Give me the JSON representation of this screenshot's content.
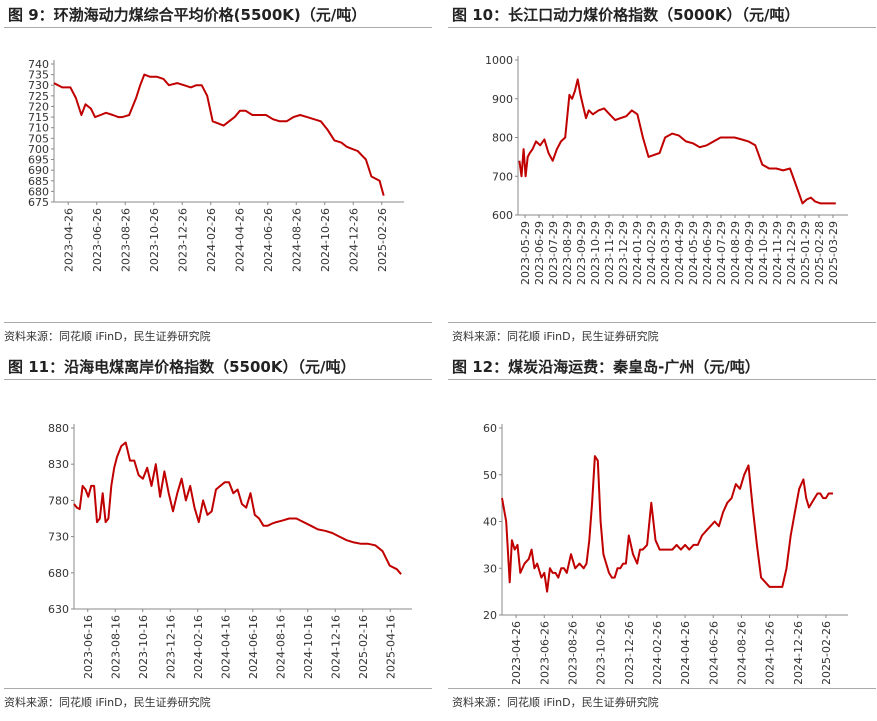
{
  "source_text": "资料来源：同花顺 iFinD，民生证券研究院",
  "line_color": "#c00000",
  "charts": [
    {
      "id": "fig9",
      "title": "图 9：环渤海动力煤综合平均价格(5500K)（元/吨）",
      "chart_data": {
        "type": "line",
        "title": "图 9：环渤海动力煤综合平均价格(5500K)（元/吨）",
        "ylim": [
          675,
          740
        ],
        "yticks": [
          675,
          680,
          685,
          690,
          695,
          700,
          705,
          710,
          715,
          720,
          725,
          730,
          735,
          740
        ],
        "xtick_labels": [
          "2023-04-26",
          "2023-06-26",
          "2023-08-26",
          "2023-10-26",
          "2023-12-26",
          "2024-02-26",
          "2024-04-26",
          "2024-06-26",
          "2024-08-26",
          "2024-10-26",
          "2024-12-26",
          "2025-02-26"
        ],
        "xlim": [
          0,
          25
        ],
        "x": [
          0,
          0.6,
          1.2,
          1.6,
          2.0,
          2.3,
          2.7,
          3.0,
          3.4,
          3.8,
          4.3,
          4.7,
          5.0,
          5.5,
          6.0,
          6.3,
          6.6,
          7.0,
          7.5,
          8.0,
          8.4,
          9.0,
          9.5,
          10.0,
          10.4,
          10.8,
          11.2,
          11.6,
          12.0,
          12.4,
          12.8,
          13.2,
          13.6,
          14.0,
          14.5,
          15.0,
          15.5,
          16.0,
          16.5,
          17.0,
          17.5,
          18.0,
          18.5,
          19.0,
          19.5,
          20.0,
          20.5,
          21.0,
          21.4,
          21.8,
          22.2,
          22.5,
          22.8,
          23.2,
          23.5,
          23.8,
          24.1
        ],
        "values": [
          731,
          729,
          729,
          724,
          716,
          721,
          719,
          715,
          716,
          717,
          716,
          715,
          715,
          716,
          724,
          730,
          735,
          734,
          734,
          733,
          730,
          731,
          730,
          729,
          730,
          730,
          725,
          713,
          712,
          711,
          713,
          715,
          718,
          718,
          716,
          716,
          716,
          714,
          713,
          713,
          715,
          716,
          715,
          714,
          713,
          709,
          704,
          703,
          701,
          700,
          699,
          697,
          695,
          687,
          686,
          685,
          678
        ]
      }
    },
    {
      "id": "fig10",
      "title": "图 10：长江口动力煤价格指数（5000K）（元/吨）",
      "chart_data": {
        "type": "line",
        "title": "图 10：长江口动力煤价格指数（5000K）（元/吨）",
        "ylim": [
          600,
          1000
        ],
        "yticks": [
          600,
          700,
          800,
          900,
          1000
        ],
        "xtick_labels": [
          "2023-05-29",
          "2023-06-29",
          "2023-07-29",
          "2023-08-29",
          "2023-09-29",
          "2023-10-29",
          "2023-11-29",
          "2023-12-29",
          "2024-01-29",
          "2024-02-29",
          "2024-03-29",
          "2024-04-29",
          "2024-05-29",
          "2024-06-29",
          "2024-07-29",
          "2024-08-29",
          "2024-09-29",
          "2024-10-29",
          "2024-11-29",
          "2024-12-29",
          "2025-01-29",
          "2025-02-28",
          "2025-03-29"
        ],
        "xlim": [
          -0.6,
          22.6
        ],
        "x": [
          -0.5,
          -0.35,
          -0.2,
          -0.05,
          0.1,
          0.25,
          0.45,
          0.7,
          1.0,
          1.3,
          1.6,
          1.9,
          2.2,
          2.5,
          2.8,
          3.1,
          3.3,
          3.5,
          3.7,
          3.9,
          4.1,
          4.3,
          4.5,
          4.8,
          5.2,
          5.6,
          6.0,
          6.4,
          6.8,
          7.2,
          7.6,
          8.0,
          8.4,
          8.8,
          9.2,
          9.6,
          10.0,
          10.5,
          11.0,
          11.5,
          12.0,
          12.5,
          13.0,
          13.5,
          14.0,
          14.5,
          15.0,
          15.5,
          16.0,
          16.5,
          17.0,
          17.5,
          18.0,
          18.5,
          19.0,
          19.3,
          19.6,
          19.9,
          20.2,
          20.5,
          20.8,
          21.2,
          21.6,
          22.0,
          22.3
        ],
        "values": [
          740,
          700,
          770,
          700,
          750,
          760,
          770,
          790,
          780,
          795,
          760,
          740,
          770,
          790,
          800,
          910,
          900,
          920,
          950,
          910,
          880,
          850,
          870,
          860,
          870,
          875,
          860,
          845,
          850,
          855,
          870,
          860,
          800,
          750,
          755,
          760,
          800,
          810,
          805,
          790,
          785,
          775,
          780,
          790,
          800,
          800,
          800,
          795,
          790,
          780,
          730,
          720,
          720,
          715,
          720,
          690,
          660,
          630,
          640,
          645,
          635,
          630,
          630,
          630,
          630
        ]
      }
    },
    {
      "id": "fig11",
      "title": "图 11：沿海电煤离岸价格指数（5500K）（元/吨）",
      "chart_data": {
        "type": "line",
        "title": "图 11：沿海电煤离岸价格指数（5500K）（元/吨）",
        "ylim": [
          630,
          880
        ],
        "yticks": [
          630,
          680,
          730,
          780,
          830,
          880
        ],
        "xtick_labels": [
          "2023-06-16",
          "2023-08-16",
          "2023-10-16",
          "2023-12-16",
          "2024-02-16",
          "2024-04-16",
          "2024-06-16",
          "2024-08-16",
          "2024-10-16",
          "2024-12-16",
          "2025-02-16",
          "2025-04-16"
        ],
        "xlim": [
          0,
          23
        ],
        "x": [
          0,
          0.2,
          0.4,
          0.6,
          0.8,
          1.0,
          1.2,
          1.4,
          1.6,
          1.8,
          2.0,
          2.2,
          2.4,
          2.6,
          2.8,
          3.0,
          3.3,
          3.6,
          3.9,
          4.2,
          4.5,
          4.8,
          5.1,
          5.4,
          5.7,
          6.0,
          6.3,
          6.6,
          6.9,
          7.2,
          7.5,
          7.8,
          8.1,
          8.4,
          8.7,
          9.0,
          9.3,
          9.6,
          9.9,
          10.2,
          10.5,
          10.8,
          11.1,
          11.4,
          11.7,
          12.0,
          12.3,
          12.6,
          12.9,
          13.2,
          13.5,
          13.8,
          14.1,
          14.5,
          15.0,
          15.5,
          16.0,
          16.5,
          17.0,
          17.5,
          18.0,
          18.5,
          19.0,
          19.5,
          20.0,
          20.5,
          21.0,
          21.5,
          22.0,
          22.5,
          22.8
        ],
        "values": [
          775,
          770,
          768,
          800,
          795,
          785,
          800,
          800,
          750,
          755,
          790,
          750,
          755,
          800,
          825,
          840,
          855,
          860,
          835,
          835,
          815,
          810,
          825,
          800,
          830,
          785,
          820,
          790,
          765,
          790,
          810,
          780,
          800,
          770,
          750,
          780,
          760,
          765,
          795,
          800,
          805,
          805,
          790,
          795,
          775,
          770,
          790,
          760,
          755,
          745,
          745,
          748,
          750,
          752,
          755,
          755,
          750,
          745,
          740,
          738,
          735,
          730,
          725,
          722,
          720,
          720,
          718,
          710,
          690,
          685,
          678
        ]
      }
    },
    {
      "id": "fig12",
      "title": "图 12：煤炭沿海运费：秦皇岛-广州（元/吨）",
      "chart_data": {
        "type": "line",
        "title": "图 12：煤炭沿海运费：秦皇岛-广州（元/吨）",
        "ylim": [
          20,
          60
        ],
        "yticks": [
          20,
          30,
          40,
          50,
          60
        ],
        "xtick_labels": [
          "2023-04-26",
          "2023-06-26",
          "2023-08-26",
          "2023-10-26",
          "2023-12-26",
          "2024-02-26",
          "2024-04-26",
          "2024-06-26",
          "2024-08-26",
          "2024-10-26",
          "2024-12-26",
          "2025-02-26"
        ],
        "xlim": [
          0,
          24
        ],
        "x": [
          0,
          0.3,
          0.55,
          0.7,
          0.9,
          1.1,
          1.3,
          1.6,
          1.9,
          2.1,
          2.3,
          2.5,
          2.8,
          3.0,
          3.2,
          3.4,
          3.6,
          3.8,
          4.0,
          4.2,
          4.4,
          4.6,
          4.9,
          5.2,
          5.5,
          5.8,
          6.0,
          6.2,
          6.4,
          6.6,
          6.8,
          7.0,
          7.2,
          7.4,
          7.6,
          7.8,
          8.0,
          8.2,
          8.4,
          8.6,
          8.8,
          9.0,
          9.3,
          9.6,
          9.8,
          10.0,
          10.3,
          10.6,
          10.9,
          11.2,
          11.5,
          11.8,
          12.1,
          12.4,
          12.7,
          13.0,
          13.3,
          13.6,
          13.9,
          14.2,
          14.5,
          14.8,
          15.1,
          15.4,
          15.7,
          16.0,
          16.3,
          16.6,
          16.9,
          17.2,
          17.5,
          17.8,
          18.1,
          18.4,
          18.7,
          19.0,
          19.3,
          19.6,
          19.9,
          20.2,
          20.5,
          20.8,
          21.1,
          21.4,
          21.6,
          21.8,
          22.0,
          22.2,
          22.4,
          22.6,
          22.8,
          23.0,
          23.2,
          23.5
        ],
        "values": [
          45,
          40,
          27,
          36,
          34,
          35,
          29,
          31,
          32,
          34,
          30,
          31,
          28,
          29,
          25,
          30,
          29,
          29,
          28,
          30,
          30,
          29,
          33,
          30,
          31,
          30,
          31,
          36,
          44,
          54,
          53,
          40,
          33,
          31,
          29,
          28,
          28,
          30,
          30,
          31,
          31,
          37,
          33,
          31,
          34,
          34,
          35,
          44,
          36,
          34,
          34,
          34,
          34,
          35,
          34,
          35,
          34,
          35,
          35,
          37,
          38,
          39,
          40,
          39,
          42,
          44,
          45,
          48,
          47,
          50,
          52,
          43,
          35,
          28,
          27,
          26,
          26,
          26,
          26,
          30,
          37,
          42,
          47,
          49,
          45,
          43,
          44,
          45,
          46,
          46,
          45,
          45,
          46,
          46
        ]
      }
    }
  ]
}
